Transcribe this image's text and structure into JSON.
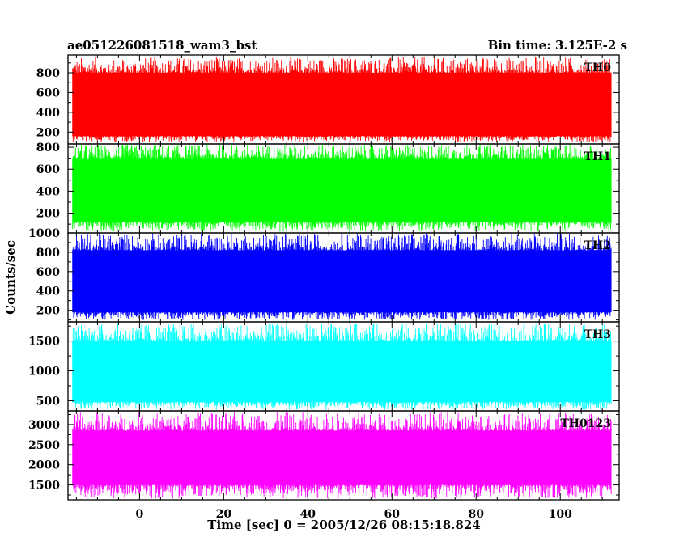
{
  "header": {
    "title": "ae051226081518_wam3_bst",
    "bin_time": "Bin time: 3.125E-2 s"
  },
  "chart_data": {
    "type": "line",
    "ylabel": "Counts/sec",
    "xlabel": "Time [sec] 0 = 2005/12/26 08:15:18.824",
    "xlim": [
      -17,
      114
    ],
    "x_ticks": [
      0,
      20,
      40,
      60,
      80,
      100
    ],
    "x_tick_labels": [
      "0",
      "20",
      "40",
      "60",
      "80",
      "100"
    ],
    "data_x_range": [
      -15.9,
      112.2
    ],
    "panels": [
      {
        "name": "TH0",
        "color": "#ff0000",
        "ylim": [
          80,
          980
        ],
        "yticks": [
          200,
          400,
          600,
          800
        ],
        "ytick_labels": [
          "200",
          "400",
          "600",
          "800"
        ],
        "typical_range": [
          160,
          800
        ],
        "extreme_range": [
          100,
          960
        ]
      },
      {
        "name": "TH1",
        "color": "#00ff00",
        "ylim": [
          20,
          830
        ],
        "yticks": [
          200,
          400,
          600,
          800
        ],
        "ytick_labels": [
          "200",
          "400",
          "600",
          "800"
        ],
        "typical_range": [
          120,
          700
        ],
        "extreme_range": [
          40,
          830
        ]
      },
      {
        "name": "TH2",
        "color": "#0000ff",
        "ylim": [
          80,
          1000
        ],
        "yticks": [
          200,
          400,
          600,
          800,
          1000
        ],
        "ytick_labels": [
          "200",
          "400",
          "600",
          "800",
          "1000"
        ],
        "typical_range": [
          180,
          820
        ],
        "extreme_range": [
          100,
          1000
        ]
      },
      {
        "name": "TH3",
        "color": "#00ffff",
        "ylim": [
          330,
          1820
        ],
        "yticks": [
          500,
          1000,
          1500
        ],
        "ytick_labels": [
          "500",
          "1000",
          "1500"
        ],
        "typical_range": [
          480,
          1500
        ],
        "extreme_range": [
          350,
          1800
        ]
      },
      {
        "name": "TH0123",
        "color": "#ff00ff",
        "ylim": [
          1130,
          3340
        ],
        "yticks": [
          1500,
          2000,
          2500,
          3000
        ],
        "ytick_labels": [
          "1500",
          "2000",
          "2500",
          "3000"
        ],
        "typical_range": [
          1500,
          2850
        ],
        "extreme_range": [
          1150,
          3300
        ]
      }
    ]
  }
}
